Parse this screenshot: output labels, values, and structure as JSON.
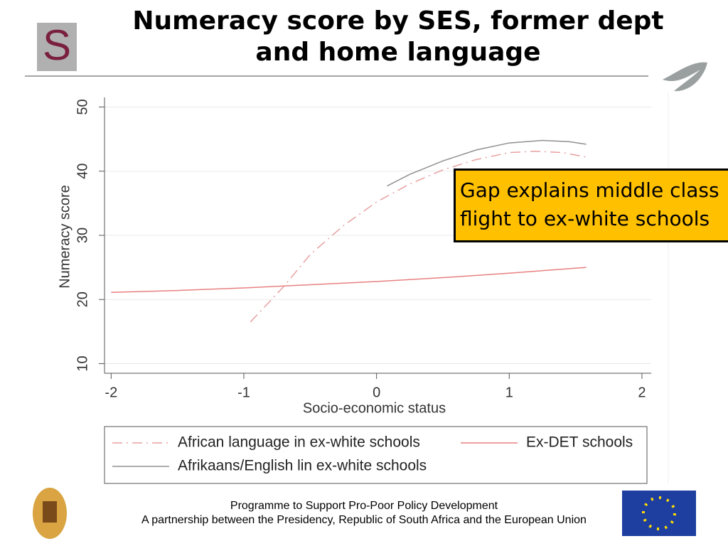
{
  "header": {
    "title": "Numeracy score by SES, former dept and home language"
  },
  "chart_data": {
    "type": "line",
    "x_label": "Socio-economic status",
    "y_label": "Numeracy score",
    "xlim": [
      -2.05,
      2.07
    ],
    "ylim": [
      8.5,
      51.5
    ],
    "xticks": [
      -2,
      -1,
      0,
      1,
      2
    ],
    "yticks": [
      10,
      20,
      30,
      40,
      50
    ],
    "grid": true,
    "annotation": "Gap explains middle class flight to ex-white schools",
    "series": [
      {
        "name": "African language in ex-white schools",
        "color": "#e8a0a0",
        "style": "dash-dot",
        "x": [
          -0.95,
          -0.7,
          -0.5,
          -0.25,
          0,
          0.25,
          0.5,
          0.75,
          1,
          1.2,
          1.4,
          1.58
        ],
        "values": [
          16.5,
          22,
          27,
          31.5,
          35.2,
          38,
          40.2,
          41.8,
          42.9,
          43.1,
          42.9,
          42.2
        ]
      },
      {
        "name": "Ex-DET schools",
        "color": "#e88080",
        "style": "solid",
        "x": [
          -2,
          -1.5,
          -1,
          -0.5,
          0,
          0.5,
          1,
          1.58
        ],
        "values": [
          21.1,
          21.4,
          21.8,
          22.3,
          22.8,
          23.4,
          24.1,
          25
        ]
      },
      {
        "name": "Afrikaans/English lin ex-white schools",
        "color": "#909090",
        "style": "solid",
        "x": [
          0.08,
          0.25,
          0.5,
          0.75,
          1,
          1.25,
          1.45,
          1.58
        ],
        "values": [
          37.7,
          39.5,
          41.6,
          43.3,
          44.4,
          44.8,
          44.6,
          44.2
        ]
      }
    ]
  },
  "footer": {
    "line1": "Programme to Support Pro-Poor Policy Development",
    "line2": "A partnership between the Presidency, Republic of South Africa and the European Union"
  }
}
